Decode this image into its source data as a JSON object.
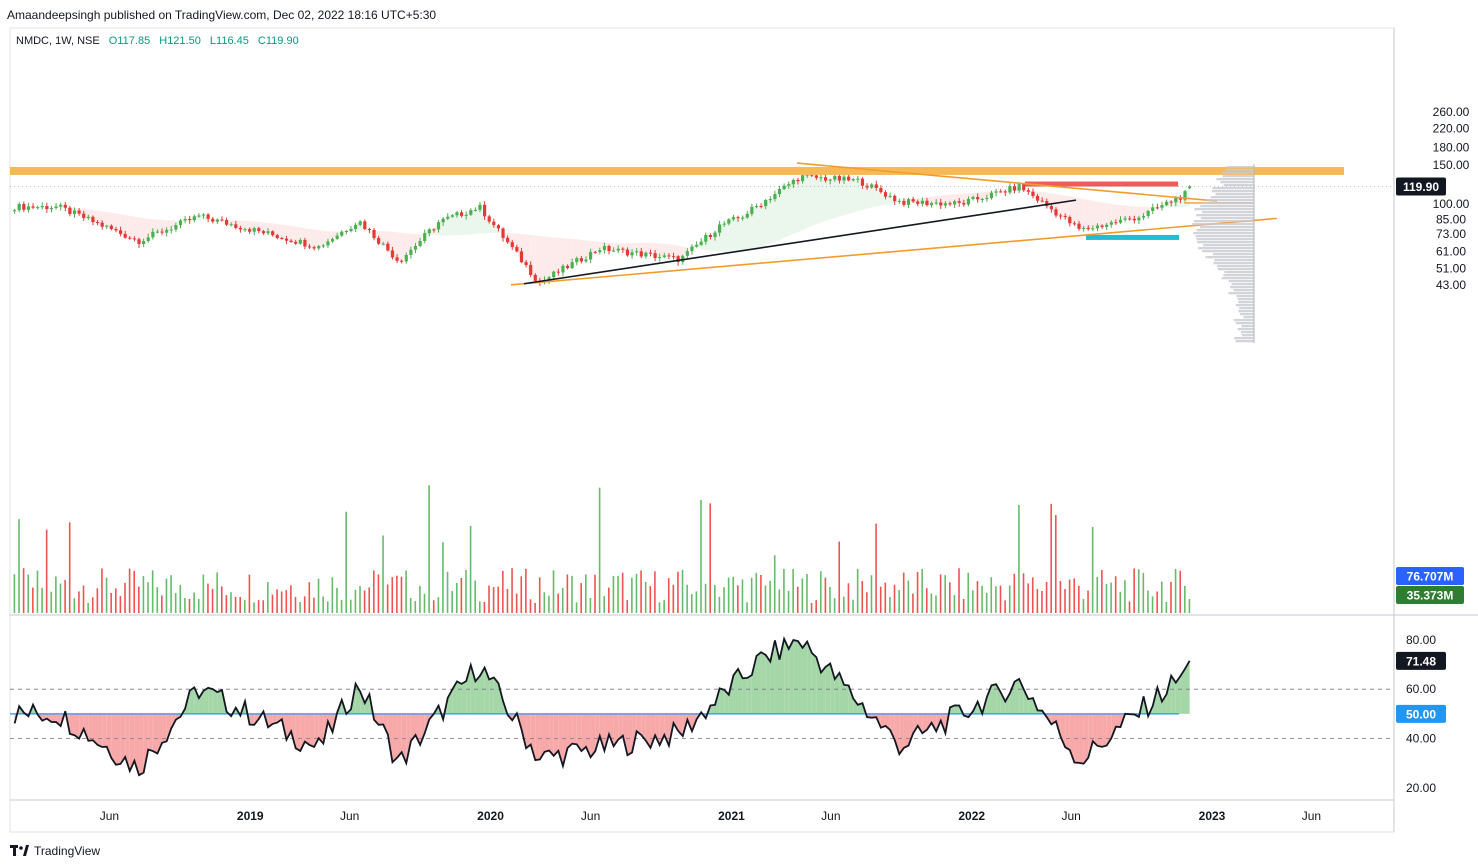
{
  "publisher": "Amaandeepsingh published on TradingView.com, Dec 02, 2022 18:16 UTC+5:30",
  "legend": {
    "symbol": "NMDC, 1W, NSE",
    "open": "O117.85",
    "high": "H121.50",
    "low": "L116.45",
    "close": "C119.90"
  },
  "brand": "TradingView",
  "colors": {
    "up": "#4caf50",
    "down": "#e53935",
    "orange": "#f59b2a",
    "red_band": "#f15a5a",
    "cyan_band": "#22bcd4"
  },
  "chart_data": [
    {
      "type": "candlestick",
      "title": "NMDC, 1W, NSE",
      "scale": "log",
      "ylim": [
        40,
        270
      ],
      "price_ticks": [
        "260.00",
        "220.00",
        "180.00",
        "150.00",
        "119.90",
        "100.00",
        "85.00",
        "73.00",
        "61.00",
        "51.00",
        "43.00"
      ],
      "current_price_label": "119.90",
      "horizontal_levels": [
        {
          "price": 141,
          "color": "#f7b955",
          "label": "resistance"
        },
        {
          "price": 123,
          "color": "#f15a5a",
          "label": "red band"
        },
        {
          "price": 70.5,
          "color": "#22bcd4",
          "label": "cyan band"
        },
        {
          "price": 101,
          "color": "#f59b2a",
          "label": "value area"
        }
      ],
      "x_ticks": [
        "Jun",
        "2019",
        "Jun",
        "2020",
        "Jun",
        "2021",
        "Jun",
        "2022",
        "Jun",
        "2023",
        "Jun"
      ],
      "key_closes": [
        {
          "date": "2018-03",
          "close": 97
        },
        {
          "date": "2018-07",
          "close": 68
        },
        {
          "date": "2018-10",
          "close": 88
        },
        {
          "date": "2019-04",
          "close": 64
        },
        {
          "date": "2019-06",
          "close": 84
        },
        {
          "date": "2019-08",
          "close": 55
        },
        {
          "date": "2019-10",
          "close": 83
        },
        {
          "date": "2019-12",
          "close": 97
        },
        {
          "date": "2020-03",
          "close": 44
        },
        {
          "date": "2020-06",
          "close": 63
        },
        {
          "date": "2020-10",
          "close": 56
        },
        {
          "date": "2020-12",
          "close": 80
        },
        {
          "date": "2021-01",
          "close": 87
        },
        {
          "date": "2021-04",
          "close": 133
        },
        {
          "date": "2021-07",
          "close": 127
        },
        {
          "date": "2021-09",
          "close": 102
        },
        {
          "date": "2021-12",
          "close": 100
        },
        {
          "date": "2022-03",
          "close": 120
        },
        {
          "date": "2022-06",
          "close": 76
        },
        {
          "date": "2022-09",
          "close": 88
        },
        {
          "date": "2022-12",
          "close": 119.9
        }
      ]
    },
    {
      "type": "bar",
      "title": "Volume",
      "labels": [
        "76.707M",
        "35.373M"
      ]
    },
    {
      "type": "line",
      "title": "RSI",
      "ylim": [
        20,
        85
      ],
      "ticks": [
        "80.00",
        "60.00",
        "40.00",
        "20.00"
      ],
      "current_label": "71.48",
      "midline_label": "50.00",
      "key_values": [
        {
          "date": "2018-03",
          "value": 50
        },
        {
          "date": "2018-07",
          "value": 28
        },
        {
          "date": "2018-10",
          "value": 60
        },
        {
          "date": "2019-04",
          "value": 36
        },
        {
          "date": "2019-06",
          "value": 62
        },
        {
          "date": "2019-08",
          "value": 30
        },
        {
          "date": "2019-12",
          "value": 70
        },
        {
          "date": "2020-03",
          "value": 32
        },
        {
          "date": "2020-10",
          "value": 42
        },
        {
          "date": "2021-02",
          "value": 72
        },
        {
          "date": "2021-04",
          "value": 80
        },
        {
          "date": "2021-09",
          "value": 37
        },
        {
          "date": "2022-03",
          "value": 63
        },
        {
          "date": "2022-06",
          "value": 31
        },
        {
          "date": "2022-12",
          "value": 71.48
        }
      ]
    }
  ]
}
